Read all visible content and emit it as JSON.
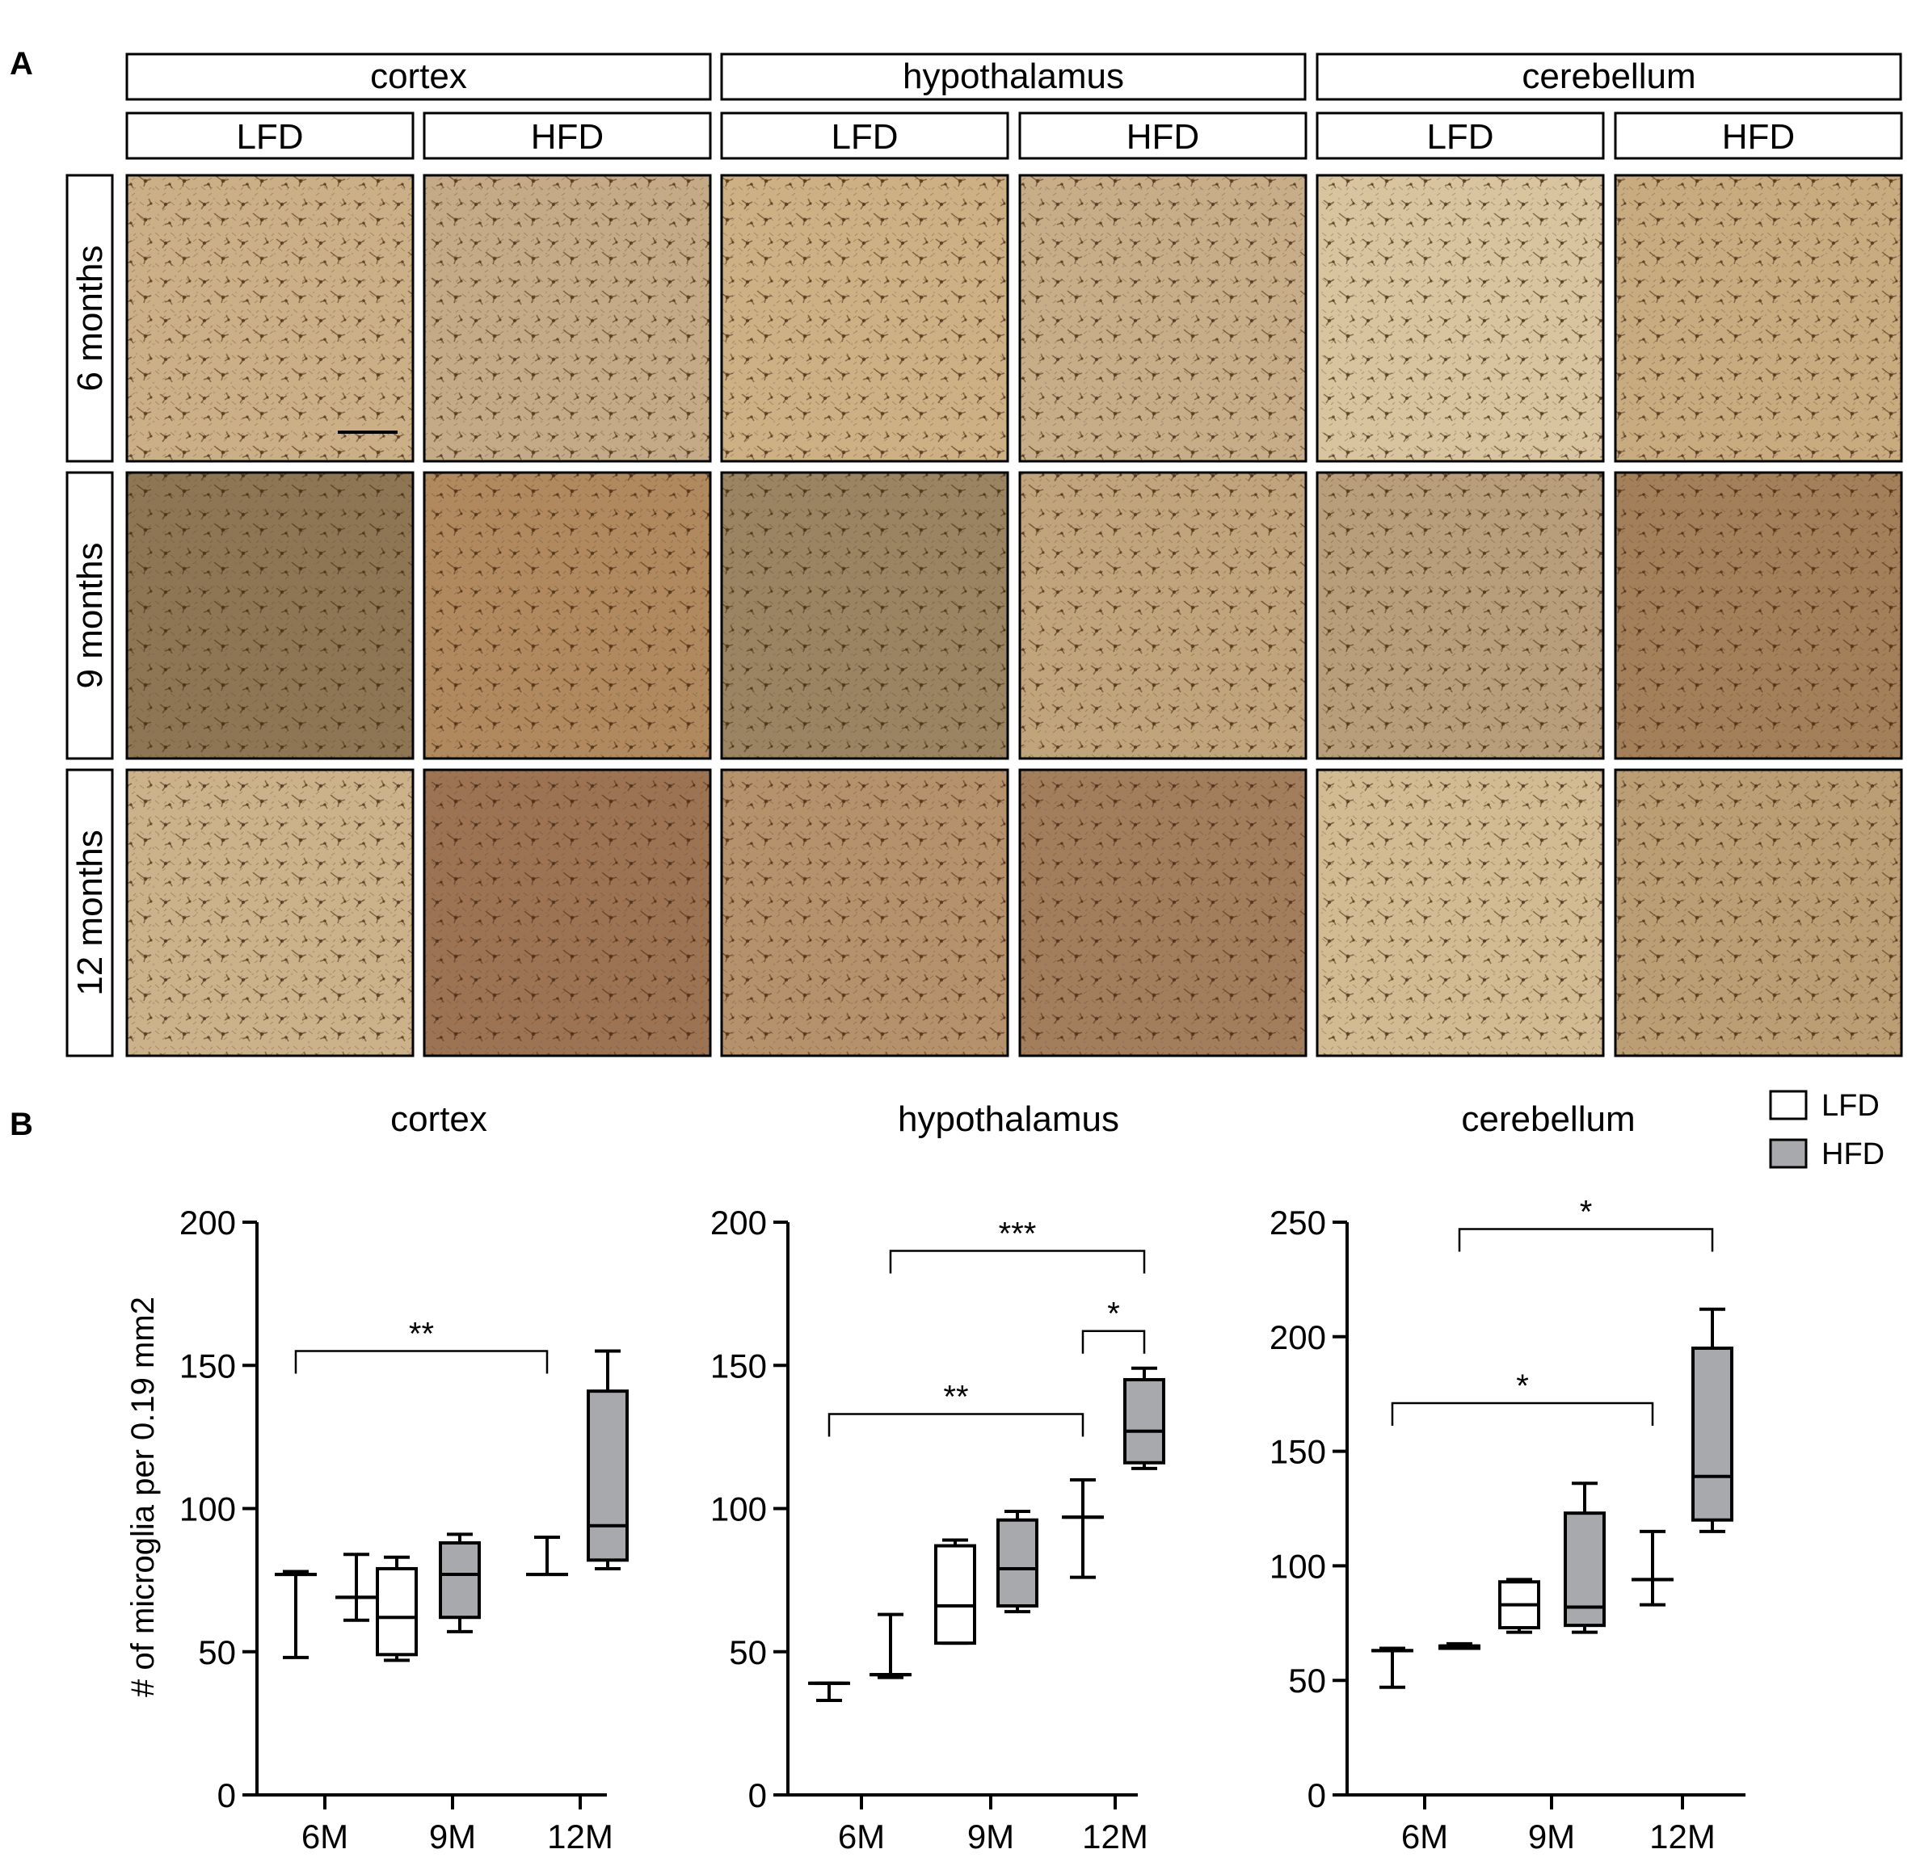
{
  "panel_a": {
    "letter": "A",
    "regions": [
      "cortex",
      "hypothalamus",
      "cerebellum"
    ],
    "diets": [
      "LFD",
      "HFD",
      "LFD",
      "HFD",
      "LFD",
      "HFD"
    ],
    "timepoints": [
      "6 months",
      "9 months",
      "12 months"
    ],
    "tiles": [
      [
        "#cbb087",
        "#c4aa86",
        "#cdb184",
        "#c7ae88",
        "#d8c5a0",
        "#c9ab80"
      ],
      [
        "#8e7655",
        "#b08a5e",
        "#9a8462",
        "#c0a47c",
        "#b89e7a",
        "#a4805a"
      ],
      [
        "#cbb28a",
        "#9c7453",
        "#b5926c",
        "#a27e5c",
        "#d2bb92",
        "#bc9e75"
      ]
    ]
  },
  "panel_b": {
    "letter": "B",
    "y_axis_label": "# of microglia per 0.19 mm2",
    "legend": [
      {
        "label": "LFD",
        "color": "#ffffff"
      },
      {
        "label": "HFD",
        "color": "#a7a9ac"
      }
    ]
  },
  "chart_data": [
    {
      "type": "box",
      "title": "cortex",
      "categories": [
        "6M",
        "9M",
        "12M"
      ],
      "ylim": [
        0,
        200
      ],
      "yticks": [
        0,
        50,
        100,
        150,
        200
      ],
      "series": [
        {
          "name": "LFD",
          "boxes": [
            {
              "category": "6M",
              "min": 48,
              "q1": 77,
              "median": 77,
              "q3": 77,
              "max": 78
            },
            {
              "category": "9M",
              "min": 47,
              "q1": 49,
              "median": 62,
              "q3": 79,
              "max": 83
            },
            {
              "category": "12M",
              "min": 77,
              "q1": 77,
              "median": 77,
              "q3": 77,
              "max": 90
            }
          ]
        },
        {
          "name": "HFD",
          "boxes": [
            {
              "category": "6M",
              "min": 61,
              "q1": 69,
              "median": 69,
              "q3": 69,
              "max": 84
            },
            {
              "category": "9M",
              "min": 57,
              "q1": 62,
              "median": 77,
              "q3": 88,
              "max": 91
            },
            {
              "category": "12M",
              "min": 79,
              "q1": 82,
              "median": 94,
              "q3": 141,
              "max": 155
            }
          ]
        }
      ],
      "significance": [
        {
          "label": "**",
          "from": "6M LFD",
          "to": "12M LFD",
          "y": 155
        }
      ]
    },
    {
      "type": "box",
      "title": "hypothalamus",
      "categories": [
        "6M",
        "9M",
        "12M"
      ],
      "ylim": [
        0,
        200
      ],
      "yticks": [
        0,
        50,
        100,
        150,
        200
      ],
      "series": [
        {
          "name": "LFD",
          "boxes": [
            {
              "category": "6M",
              "min": 33,
              "q1": 39,
              "median": 39,
              "q3": 39,
              "max": 39
            },
            {
              "category": "9M",
              "min": 53,
              "q1": 53,
              "median": 66,
              "q3": 87,
              "max": 89
            },
            {
              "category": "12M",
              "min": 76,
              "q1": 97,
              "median": 97,
              "q3": 97,
              "max": 110
            }
          ]
        },
        {
          "name": "HFD",
          "boxes": [
            {
              "category": "6M",
              "min": 41,
              "q1": 42,
              "median": 42,
              "q3": 42,
              "max": 63
            },
            {
              "category": "9M",
              "min": 64,
              "q1": 66,
              "median": 79,
              "q3": 96,
              "max": 99
            },
            {
              "category": "12M",
              "min": 114,
              "q1": 116,
              "median": 127,
              "q3": 145,
              "max": 149
            }
          ]
        }
      ],
      "significance": [
        {
          "label": "***",
          "from": "6M HFD",
          "to": "12M HFD",
          "y": 190
        },
        {
          "label": "*",
          "from": "12M LFD",
          "to": "12M HFD",
          "y": 162
        },
        {
          "label": "**",
          "from": "6M LFD",
          "to": "12M LFD",
          "y": 133
        }
      ]
    },
    {
      "type": "box",
      "title": "cerebellum",
      "categories": [
        "6M",
        "9M",
        "12M"
      ],
      "ylim": [
        0,
        250
      ],
      "yticks": [
        0,
        50,
        100,
        150,
        200,
        250
      ],
      "series": [
        {
          "name": "LFD",
          "boxes": [
            {
              "category": "6M",
              "min": 47,
              "q1": 63,
              "median": 63,
              "q3": 63,
              "max": 64
            },
            {
              "category": "9M",
              "min": 71,
              "q1": 73,
              "median": 83,
              "q3": 93,
              "max": 94
            },
            {
              "category": "12M",
              "min": 83,
              "q1": 94,
              "median": 94,
              "q3": 94,
              "max": 115
            }
          ]
        },
        {
          "name": "HFD",
          "boxes": [
            {
              "category": "6M",
              "min": 64,
              "q1": 64,
              "median": 65,
              "q3": 65,
              "max": 66
            },
            {
              "category": "9M",
              "min": 71,
              "q1": 74,
              "median": 82,
              "q3": 123,
              "max": 136
            },
            {
              "category": "12M",
              "min": 115,
              "q1": 120,
              "median": 139,
              "q3": 195,
              "max": 212
            }
          ]
        }
      ],
      "significance": [
        {
          "label": "*",
          "from": "6M HFD",
          "to": "12M HFD",
          "y": 247
        },
        {
          "label": "*",
          "from": "6M LFD",
          "to": "12M LFD",
          "y": 171
        }
      ]
    }
  ]
}
